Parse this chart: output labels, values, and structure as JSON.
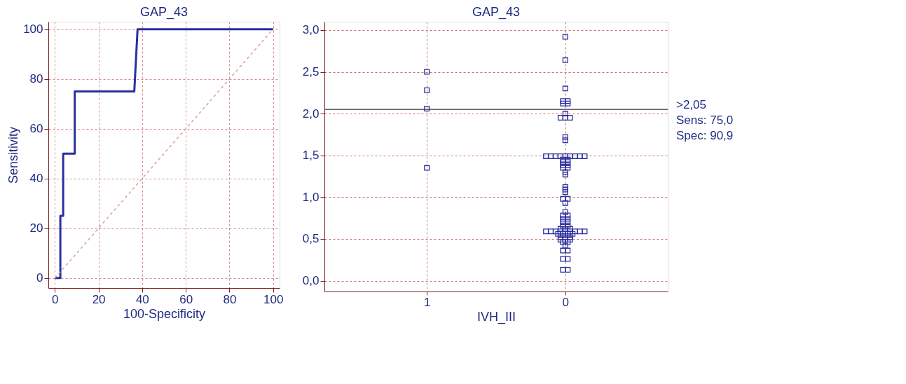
{
  "chart_data": [
    {
      "type": "line",
      "title": "GAP_43",
      "xlabel": "100-Specificity",
      "ylabel": "Sensitivity",
      "xlim": [
        -3,
        103
      ],
      "ylim": [
        -4,
        103
      ],
      "xticks": [
        0,
        20,
        40,
        60,
        80,
        100
      ],
      "yticks": [
        0,
        20,
        40,
        60,
        80,
        100
      ],
      "grid": true,
      "marker": "none",
      "series": [
        {
          "color": "#2b2f9e",
          "line_style": "solid",
          "x": [
            0,
            2.5,
            2.5,
            3.8,
            3.8,
            9.1,
            9.1,
            36.4,
            37.9,
            100
          ],
          "values": [
            0,
            0,
            25,
            25,
            50,
            50,
            75,
            75,
            100,
            100
          ]
        },
        {
          "color": "#d9a0a0",
          "line_style": "dashed",
          "x": [
            0,
            100
          ],
          "values": [
            0,
            100
          ]
        }
      ]
    },
    {
      "type": "scatter",
      "title": "GAP_43",
      "xlabel": "IVH_III",
      "categories": [
        "1",
        "0"
      ],
      "ylim": [
        -0.13,
        3.1
      ],
      "yticks": [
        {
          "value": 0,
          "label": "0,0"
        },
        {
          "value": 0.5,
          "label": "0,5"
        },
        {
          "value": 1,
          "label": "1,0"
        },
        {
          "value": 1.5,
          "label": "1,5"
        },
        {
          "value": 2,
          "label": "2,0"
        },
        {
          "value": 2.5,
          "label": "2,5"
        },
        {
          "value": 3,
          "label": "3,0"
        }
      ],
      "grid": true,
      "marker": "square",
      "ref_lines": [
        {
          "axis": "y",
          "value": 2.05,
          "label": ">2,05",
          "color": "#333333"
        }
      ],
      "annotations": [
        "Sens: 75,0",
        "Spec: 90,9"
      ],
      "series": [
        {
          "color": "#2b2f9e",
          "x": [
            "1",
            "1",
            "1",
            "1"
          ],
          "values": [
            2.5,
            2.28,
            2.06,
            1.35
          ]
        },
        {
          "color": "#2b2f9e",
          "x": [
            "0",
            "0",
            "0",
            "0",
            "0",
            "0",
            "0",
            "0",
            "0",
            "0",
            "0",
            "0",
            "0",
            "0",
            "0",
            "0",
            "0",
            "0",
            "0",
            "0",
            "0",
            "0",
            "0",
            "0",
            "0",
            "0",
            "0",
            "0",
            "0",
            "0",
            "0",
            "0",
            "0",
            "0",
            "0",
            "0",
            "0",
            "0",
            "0",
            "0",
            "0",
            "0",
            "0",
            "0",
            "0",
            "0",
            "0",
            "0",
            "0",
            "0",
            "0",
            "0",
            "0",
            "0",
            "0",
            "0",
            "0",
            "0",
            "0",
            "0",
            "0",
            "0",
            "0",
            "0",
            "0",
            "0",
            "0",
            "0",
            "0",
            "0",
            "0",
            "0",
            "0",
            "0",
            "0",
            "0",
            "0",
            "0"
          ],
          "values": [
            2.92,
            2.64,
            2.3,
            2.15,
            2.15,
            2.12,
            2.12,
            2.0,
            1.95,
            1.95,
            1.95,
            1.72,
            1.68,
            1.49,
            1.49,
            1.49,
            1.49,
            1.49,
            1.49,
            1.49,
            1.49,
            1.49,
            1.45,
            1.45,
            1.42,
            1.42,
            1.38,
            1.38,
            1.35,
            1.35,
            1.3,
            1.27,
            1.12,
            1.09,
            1.06,
            0.98,
            0.98,
            0.93,
            0.82,
            0.78,
            0.78,
            0.74,
            0.74,
            0.7,
            0.7,
            0.66,
            0.66,
            0.62,
            0.62,
            0.62,
            0.59,
            0.59,
            0.59,
            0.59,
            0.59,
            0.59,
            0.59,
            0.59,
            0.59,
            0.56,
            0.56,
            0.56,
            0.56,
            0.52,
            0.52,
            0.52,
            0.49,
            0.49,
            0.49,
            0.46,
            0.46,
            0.42,
            0.36,
            0.36,
            0.26,
            0.26,
            0.13,
            0.13
          ]
        }
      ]
    }
  ]
}
